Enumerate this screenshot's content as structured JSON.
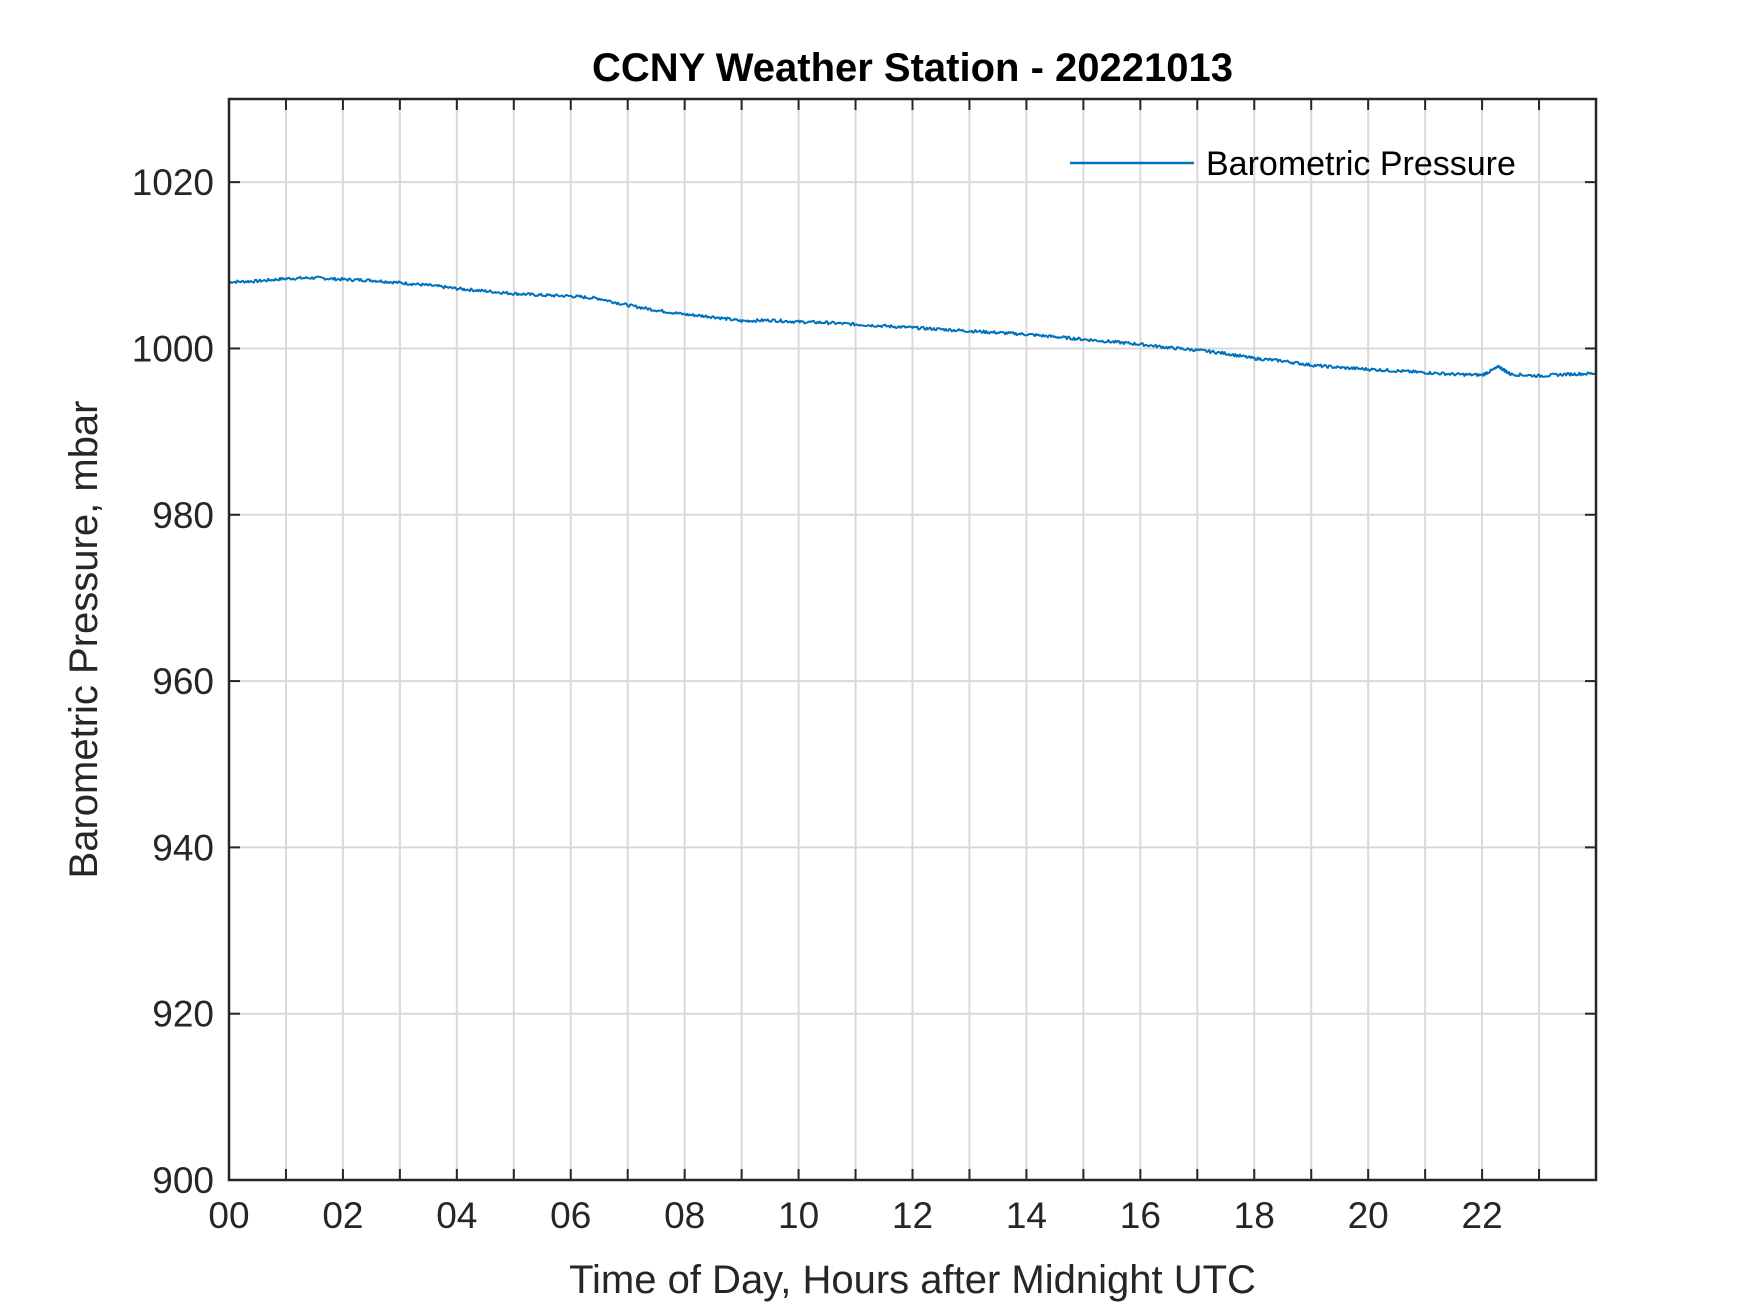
{
  "chart_data": {
    "type": "line",
    "title": "CCNY Weather Station - 20221013",
    "xlabel": "Time of Day, Hours after Midnight UTC",
    "ylabel": "Barometric Pressure, mbar",
    "xlim": [
      0,
      24
    ],
    "ylim": [
      900,
      1030
    ],
    "xticks": [
      0,
      2,
      4,
      6,
      8,
      10,
      12,
      14,
      16,
      18,
      20,
      22
    ],
    "xtick_labels": [
      "00",
      "02",
      "04",
      "06",
      "08",
      "10",
      "12",
      "14",
      "16",
      "18",
      "20",
      "22"
    ],
    "xgrid": [
      0,
      1,
      2,
      3,
      4,
      5,
      6,
      7,
      8,
      9,
      10,
      11,
      12,
      13,
      14,
      15,
      16,
      17,
      18,
      19,
      20,
      21,
      22,
      23
    ],
    "yticks": [
      900,
      920,
      940,
      960,
      980,
      1000,
      1020
    ],
    "ytick_labels": [
      "900",
      "920",
      "940",
      "960",
      "980",
      "1000",
      "1020"
    ],
    "grid": true,
    "legend_position": "top-right",
    "series": [
      {
        "name": "Barometric Pressure",
        "color": "#0072bd",
        "x": [
          0,
          0.5,
          1,
          1.5,
          2,
          2.5,
          3,
          3.5,
          4,
          4.5,
          5,
          5.5,
          6,
          6.5,
          7,
          7.5,
          8,
          8.5,
          9,
          9.5,
          10,
          10.5,
          11,
          11.5,
          12,
          12.5,
          13,
          13.5,
          14,
          14.5,
          15,
          15.5,
          16,
          16.5,
          17,
          17.5,
          18,
          18.5,
          19,
          19.5,
          20,
          20.5,
          21,
          21.5,
          22,
          22.3,
          22.5,
          23,
          23.5,
          24
        ],
        "values": [
          1008.0,
          1008.1,
          1008.4,
          1008.5,
          1008.3,
          1008.2,
          1007.9,
          1007.6,
          1007.2,
          1006.9,
          1006.6,
          1006.4,
          1006.3,
          1006.0,
          1005.2,
          1004.6,
          1004.1,
          1003.8,
          1003.3,
          1003.4,
          1003.2,
          1003.1,
          1002.9,
          1002.7,
          1002.5,
          1002.3,
          1002.1,
          1001.9,
          1001.7,
          1001.4,
          1001.1,
          1000.8,
          1000.5,
          1000.1,
          999.8,
          999.4,
          998.8,
          998.5,
          998.0,
          997.7,
          997.5,
          997.3,
          997.1,
          996.9,
          996.8,
          997.8,
          996.9,
          996.7,
          996.9,
          997.0
        ]
      }
    ]
  }
}
